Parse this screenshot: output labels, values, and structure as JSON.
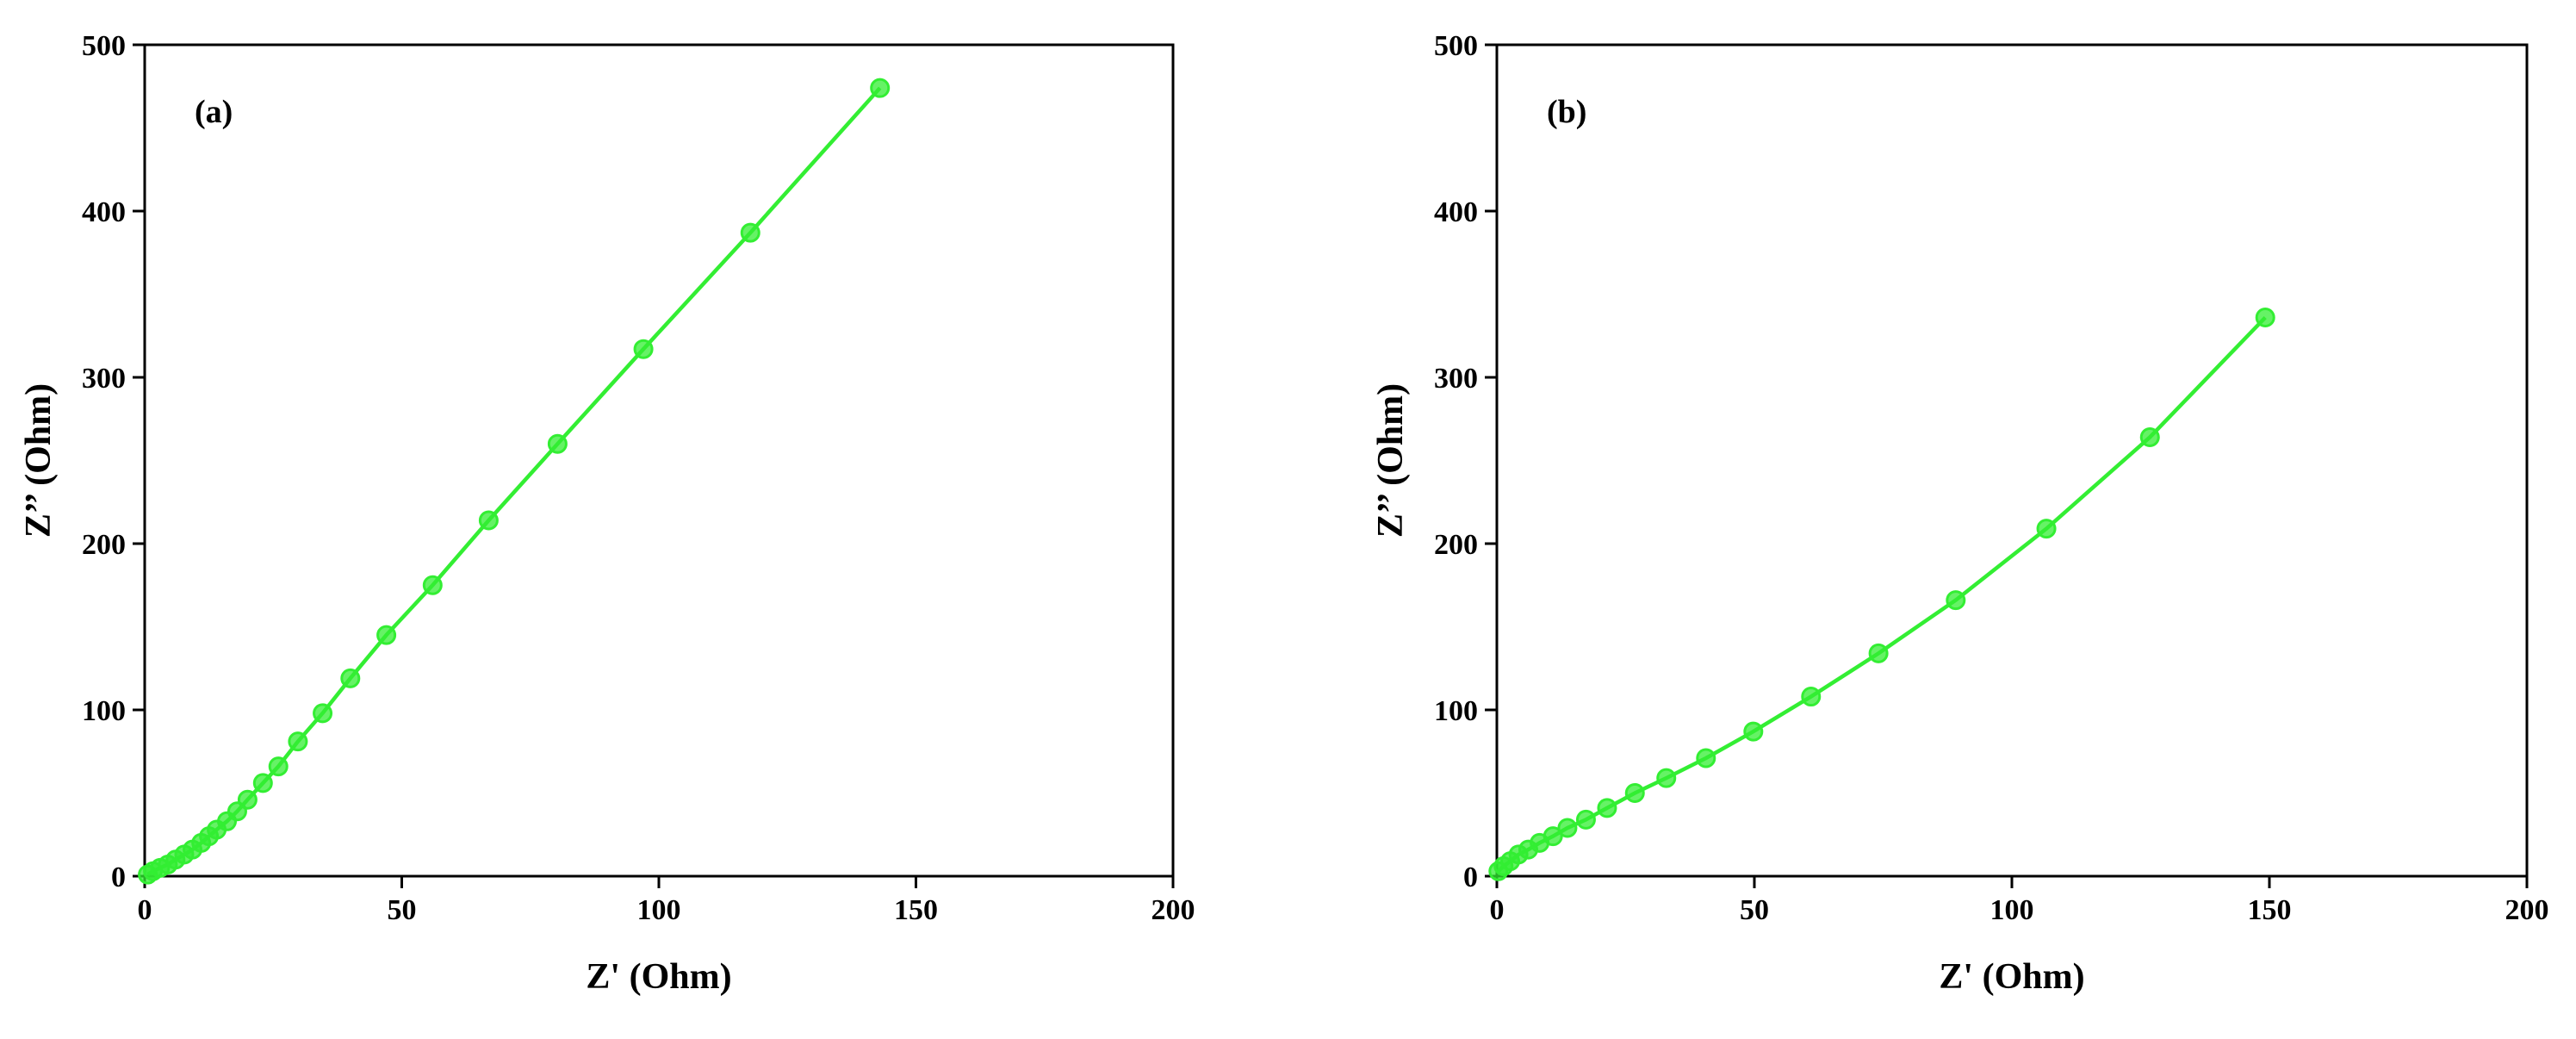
{
  "chart_data": [
    {
      "type": "line",
      "annotation": "(a)",
      "x_label": "Z' (Ohm)",
      "y_label": "Z’’ (Ohm)",
      "color": "#33ee33",
      "markers": true,
      "x": [
        0.6,
        1.6,
        3,
        4.5,
        6,
        7.7,
        9.3,
        11,
        12.5,
        14,
        16,
        18,
        20,
        23,
        26,
        29.8,
        34.6,
        40,
        47,
        56,
        66.9,
        80.3,
        97,
        117.8,
        143
      ],
      "values": [
        1,
        3,
        5,
        7,
        10,
        13,
        16,
        20,
        24,
        28,
        33,
        39,
        46,
        56,
        66,
        81,
        98,
        119,
        145,
        175,
        214,
        260,
        317,
        387,
        474
      ],
      "xlim": [
        0,
        200
      ],
      "ylim": [
        0,
        500
      ],
      "xticks": [
        0,
        50,
        100,
        150,
        200
      ],
      "yticks": [
        0,
        100,
        200,
        300,
        400,
        500
      ]
    },
    {
      "type": "line",
      "annotation": "(b)",
      "x_label": "Z' (Ohm)",
      "y_label": "Z’’ (Ohm)",
      "color": "#33ee33",
      "markers": true,
      "x": [
        0.3,
        1.3,
        2.6,
        4.2,
        6.1,
        8.3,
        10.9,
        13.7,
        17.3,
        21.4,
        26.8,
        32.9,
        40.6,
        49.8,
        61,
        74.1,
        89.1,
        106.7,
        126.8,
        149.2
      ],
      "values": [
        3,
        6,
        9,
        13,
        16,
        20,
        24,
        29,
        34,
        41,
        50,
        59,
        71,
        87,
        108,
        134,
        166,
        209,
        264,
        336
      ],
      "xlim": [
        0,
        200
      ],
      "ylim": [
        0,
        500
      ],
      "xticks": [
        0,
        50,
        100,
        150,
        200
      ],
      "yticks": [
        0,
        100,
        200,
        300,
        400,
        500
      ]
    }
  ]
}
